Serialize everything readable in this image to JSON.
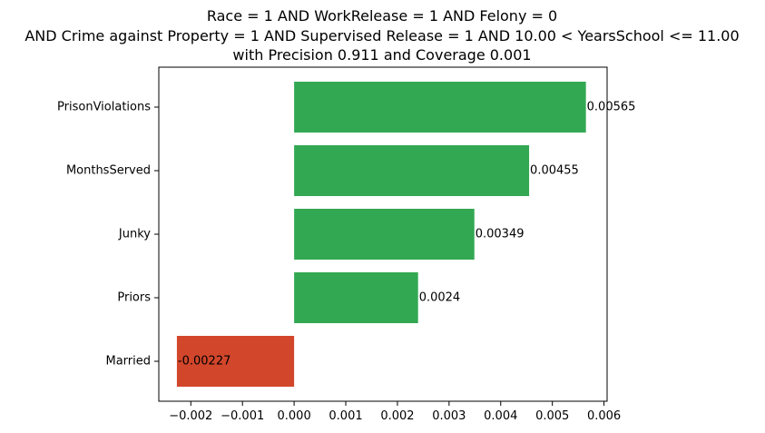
{
  "chart_data": {
    "type": "bar",
    "orientation": "horizontal",
    "title_lines": [
      "Race = 1 AND WorkRelease = 1 AND Felony = 0",
      "AND Crime against Property = 1 AND Supervised Release = 1 AND 10.00 < YearsSchool <= 11.00",
      "with Precision 0.911 and Coverage 0.001"
    ],
    "xlabel": "",
    "ylabel": "",
    "categories": [
      "PrisonViolations",
      "MonthsServed",
      "Junky",
      "Priors",
      "Married"
    ],
    "values": [
      0.00565,
      0.00455,
      0.00349,
      0.0024,
      -0.00227
    ],
    "value_labels": [
      "0.00565",
      "0.00455",
      "0.00349",
      "0.0024",
      "-0.00227"
    ],
    "xlim": [
      -0.00262,
      0.00606
    ],
    "xticks": [
      -0.002,
      -0.001,
      0.0,
      0.001,
      0.002,
      0.003,
      0.004,
      0.005,
      0.006
    ],
    "xtick_labels": [
      "−0.002",
      "−0.001",
      "0.000",
      "0.001",
      "0.002",
      "0.003",
      "0.004",
      "0.005",
      "0.006"
    ],
    "grid": false,
    "legend": "none",
    "colors": {
      "positive": "#33a853",
      "negative": "#d2462b"
    }
  }
}
